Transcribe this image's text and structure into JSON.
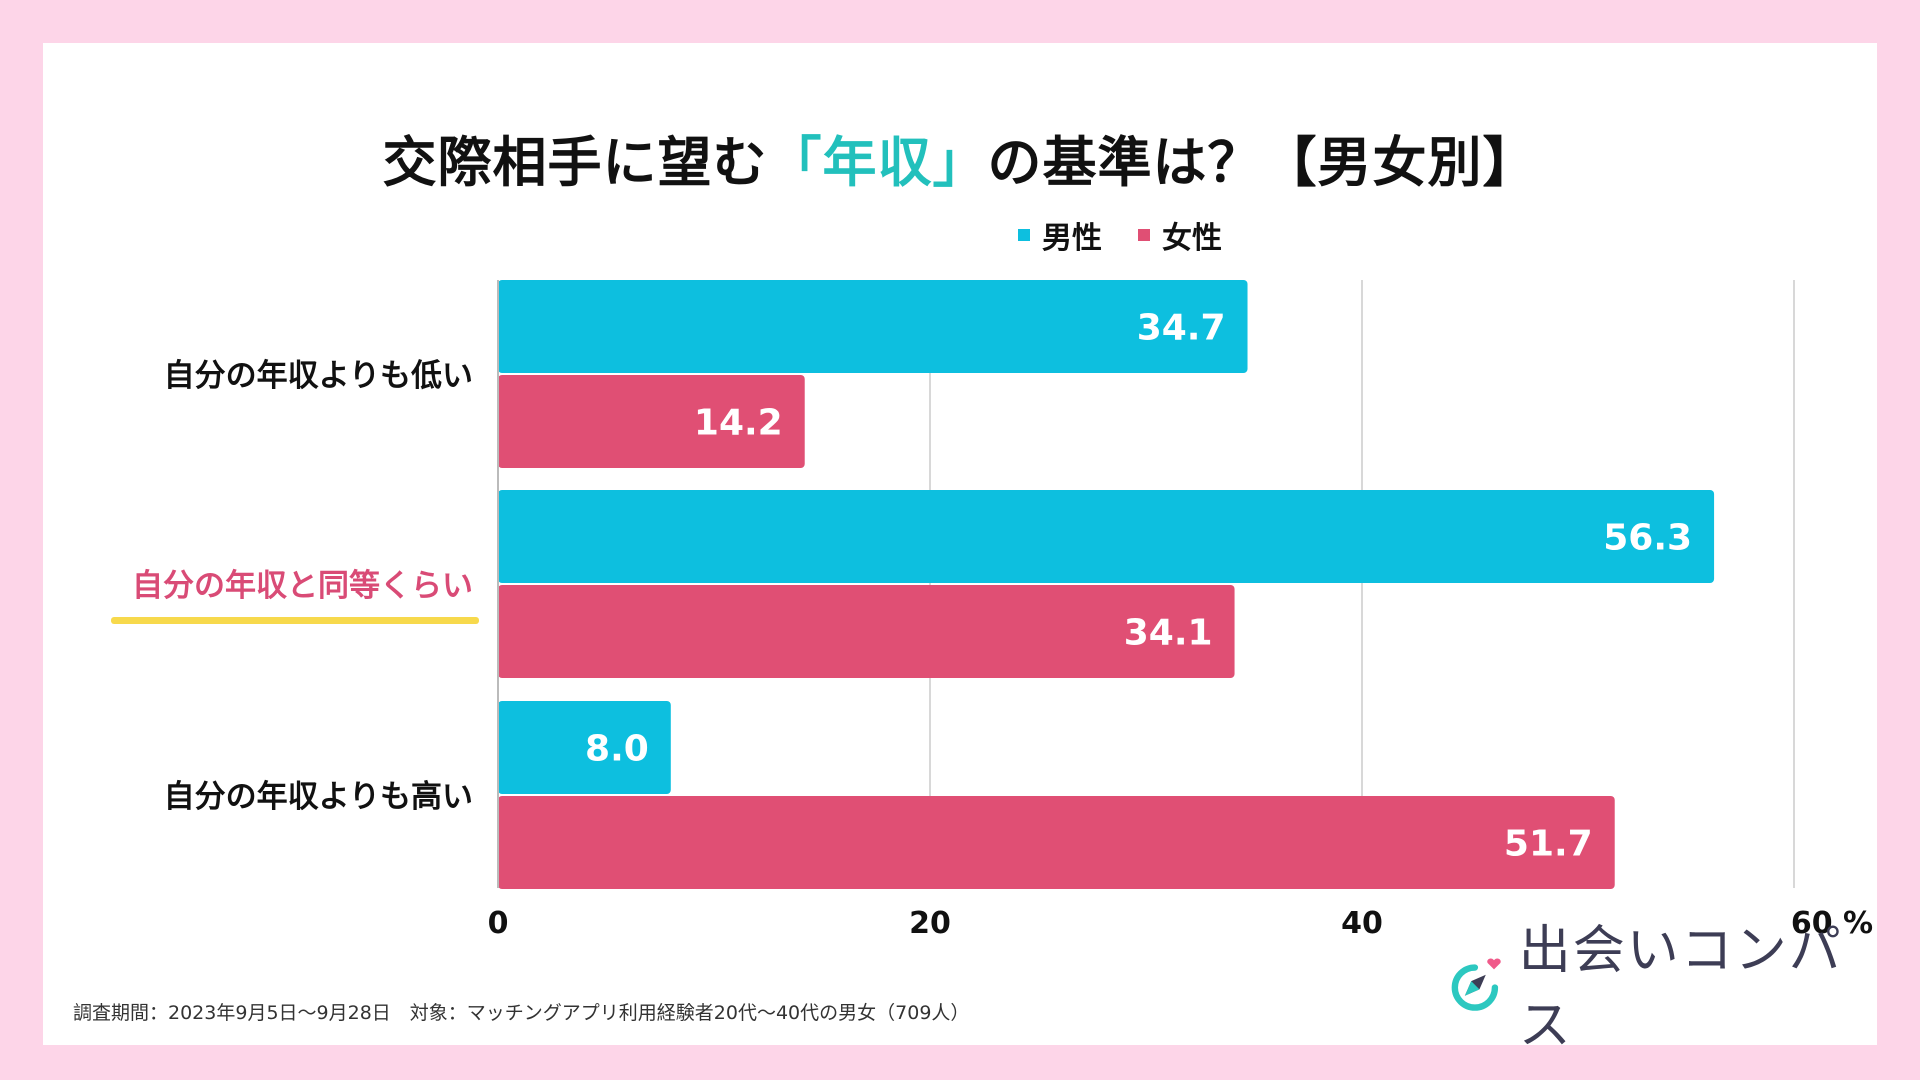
{
  "title": {
    "before": "交際相手に望む",
    "accent": "「年収」",
    "after": "の基準は？【男女別】"
  },
  "legend": [
    {
      "label": "男性",
      "color": "#0dbfdf"
    },
    {
      "label": "女性",
      "color": "#e04f74"
    }
  ],
  "chart_data": {
    "type": "bar",
    "orientation": "horizontal",
    "title": "交際相手に望む「年収」の基準は？【男女別】",
    "categories": [
      "自分の年収よりも低い",
      "自分の年収と同等くらい",
      "自分の年収よりも高い"
    ],
    "highlighted_category": "自分の年収と同等くらい",
    "series": [
      {
        "name": "男性",
        "color": "#0dbfdf",
        "values": [
          34.7,
          56.3,
          8.0
        ],
        "labels": [
          "34.7",
          "56.3",
          "8.0"
        ]
      },
      {
        "name": "女性",
        "color": "#e04f74",
        "values": [
          14.2,
          34.1,
          51.7
        ],
        "labels": [
          "14.2",
          "34.1",
          "51.7"
        ]
      }
    ],
    "xlim": [
      0,
      60
    ],
    "ticks": [
      0,
      20,
      40,
      60
    ],
    "tick_labels": [
      "0",
      "20",
      "40",
      "60 %"
    ],
    "grid": true
  },
  "footer": {
    "note": "調査期間：2023年9月5日〜9月28日　対象：マッチングアプリ利用経験者20代〜40代の男女（709人）",
    "brand": "出会いコンパス"
  },
  "colors": {
    "background": "#fdd5e8",
    "highlight_text": "#d94b76",
    "highlight_underline": "#f7d94c",
    "brand_heart": "#f05a8a",
    "brand_ring": "#2cc8c0"
  }
}
